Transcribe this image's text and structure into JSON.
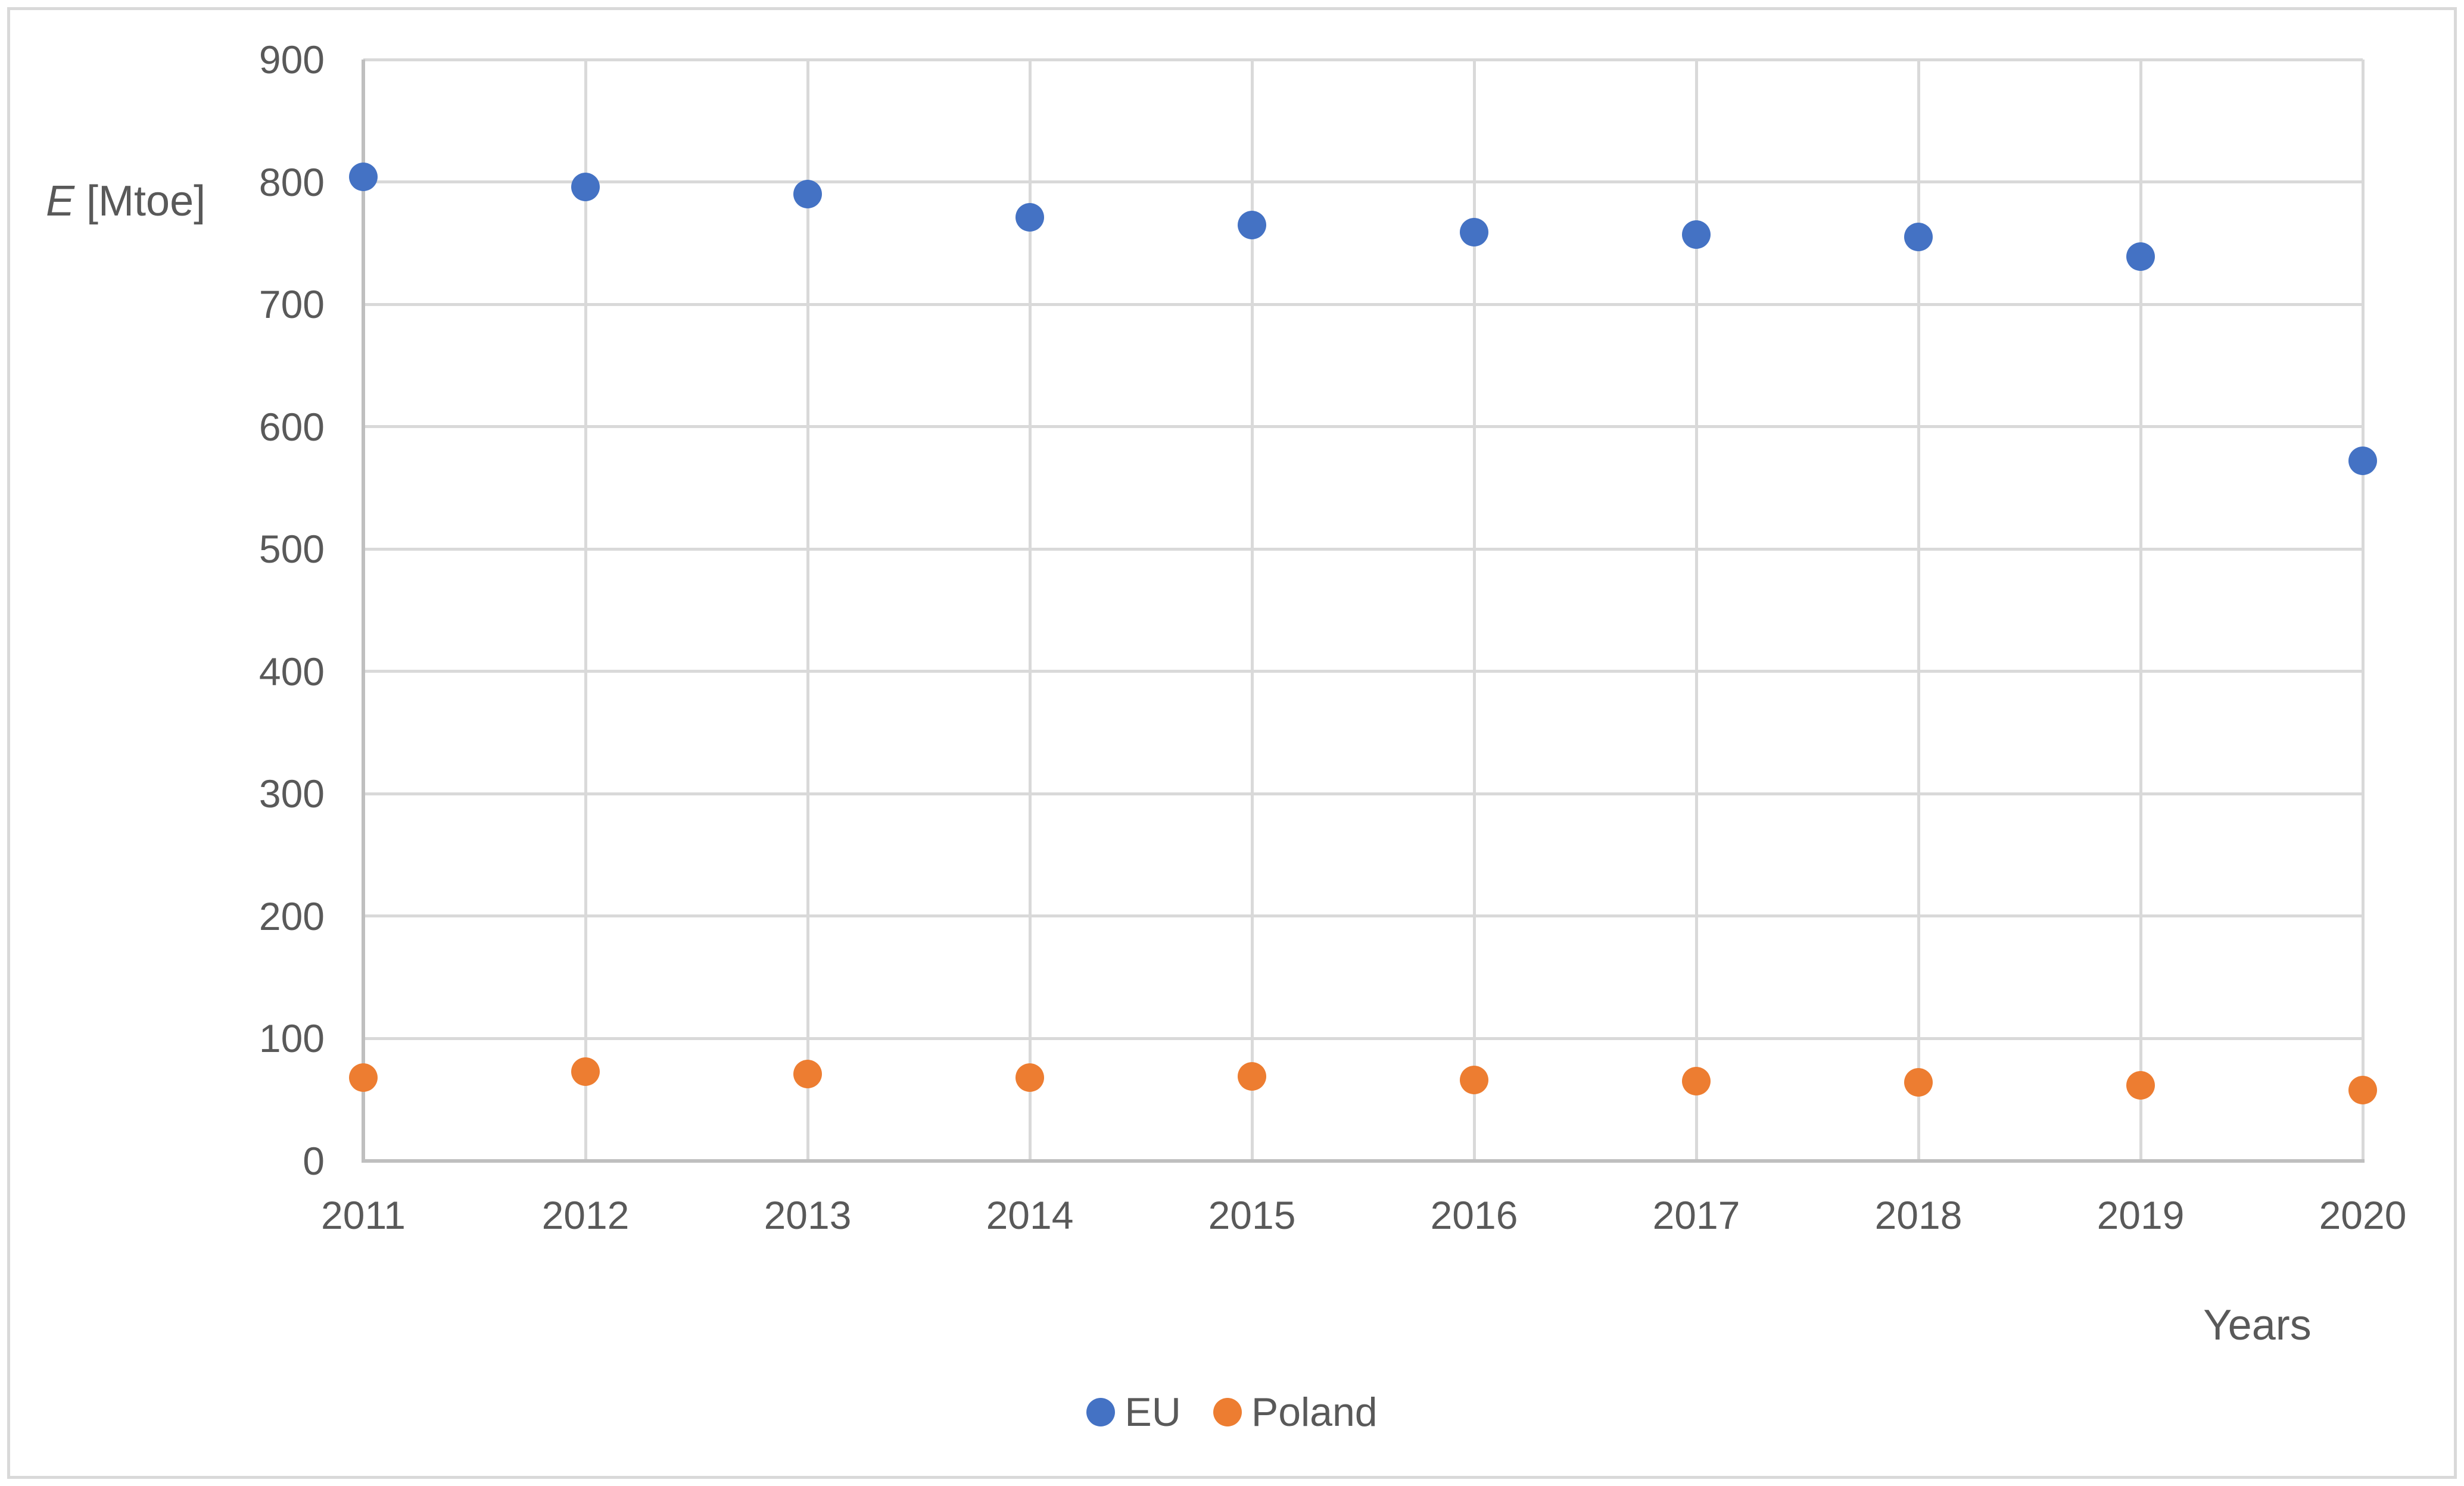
{
  "chart_data": {
    "type": "scatter",
    "title": "",
    "x": [
      2011,
      2012,
      2013,
      2014,
      2015,
      2016,
      2017,
      2018,
      2019,
      2020
    ],
    "series": [
      {
        "name": "EU",
        "color": "#4472C4",
        "values": [
          804,
          796,
          790,
          771,
          765,
          759,
          757,
          755,
          739,
          572
        ]
      },
      {
        "name": "Poland",
        "color": "#ED7D31",
        "values": [
          68,
          73,
          71,
          68,
          69,
          66,
          65,
          64,
          62,
          58
        ]
      }
    ],
    "xlabel": "Years",
    "ylabel": "E [Mtoe]",
    "ylim": [
      0,
      900
    ],
    "yticks": [
      0,
      100,
      200,
      300,
      400,
      500,
      600,
      700,
      800,
      900
    ],
    "grid": true,
    "legend_position": "bottom-center"
  },
  "axis_titles": {
    "y_em": "E",
    "y_rest": " [Mtoe]",
    "x": "Years"
  },
  "style": {
    "eu_color": "#4472C4",
    "poland_color": "#ED7D31",
    "gridline_color": "#D9D9D9",
    "axis_line_color": "#BFBFBF",
    "text_color": "#595959",
    "border_color": "#D9D9D9"
  }
}
